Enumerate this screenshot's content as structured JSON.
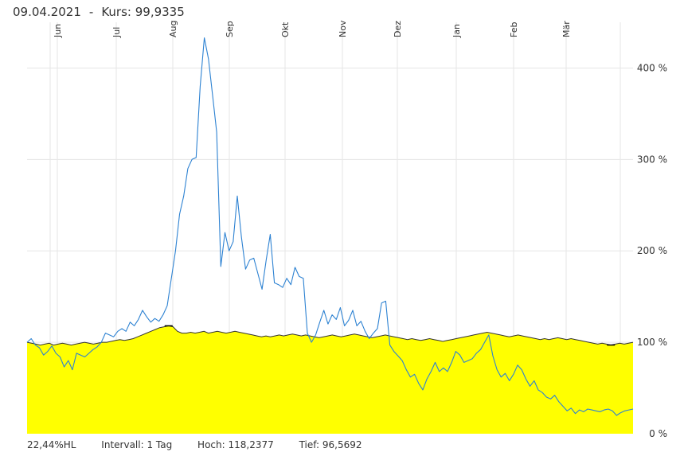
{
  "header": {
    "date": "09.04.2021",
    "kurs_label": "Kurs:",
    "kurs_value": "99,9335"
  },
  "footer": {
    "hl": "22,44%HL",
    "interval": "Intervall: 1 Tag",
    "high": "Hoch: 118,2377",
    "low": "Tief: 96,5692"
  },
  "colors": {
    "area_fill": "#ffff00",
    "area_line": "#333333",
    "series_line": "#2d82d2",
    "grid": "#e6e6e6"
  },
  "chart_data": {
    "type": "area",
    "x_ticks": [
      "Jun",
      "Jul",
      "Aug",
      "Sep",
      "Okt",
      "Nov",
      "Dez",
      "Jan",
      "Feb",
      "Mär"
    ],
    "y_ticks": [
      "0 %",
      "100 %",
      "200 %",
      "300 %",
      "400 %"
    ],
    "ylim": [
      0,
      450
    ],
    "grid": true,
    "series": [
      {
        "values": [
          100,
          99,
          98,
          97,
          98,
          99,
          97,
          98,
          99,
          98,
          97,
          98,
          99,
          100,
          99,
          98,
          99,
          100,
          100,
          101,
          102,
          103,
          102,
          103,
          104,
          106,
          108,
          110,
          112,
          114,
          116,
          117,
          118,
          117,
          112,
          110,
          110,
          111,
          110,
          111,
          112,
          110,
          111,
          112,
          111,
          110,
          111,
          112,
          111,
          110,
          109,
          108,
          107,
          106,
          107,
          106,
          107,
          108,
          107,
          108,
          109,
          108,
          107,
          108,
          107,
          106,
          105,
          106,
          107,
          108,
          107,
          106,
          107,
          108,
          109,
          108,
          107,
          106,
          105,
          106,
          107,
          108,
          107,
          106,
          105,
          104,
          103,
          104,
          103,
          102,
          103,
          104,
          103,
          102,
          101,
          102,
          103,
          104,
          105,
          106,
          107,
          108,
          109,
          110,
          111,
          110,
          109,
          108,
          107,
          106,
          107,
          108,
          107,
          106,
          105,
          104,
          103,
          104,
          103,
          104,
          105,
          104,
          103,
          104,
          103,
          102,
          101,
          100,
          99,
          98,
          99,
          98,
          97,
          98,
          99,
          98,
          99,
          100
        ]
      },
      {
        "values": [
          100,
          104,
          97,
          94,
          86,
          90,
          96,
          88,
          84,
          73,
          80,
          70,
          88,
          86,
          84,
          88,
          92,
          95,
          100,
          110,
          108,
          106,
          112,
          115,
          112,
          122,
          118,
          125,
          135,
          128,
          122,
          126,
          123,
          130,
          140,
          170,
          200,
          240,
          260,
          290,
          300,
          302,
          380,
          433,
          410,
          370,
          330,
          183,
          220,
          200,
          210,
          260,
          215,
          180,
          190,
          192,
          175,
          158,
          190,
          218,
          165,
          163,
          160,
          170,
          163,
          182,
          172,
          170,
          110,
          100,
          108,
          122,
          135,
          120,
          130,
          125,
          138,
          118,
          124,
          135,
          118,
          123,
          112,
          104,
          110,
          115,
          143,
          145,
          97,
          90,
          85,
          80,
          70,
          62,
          65,
          55,
          48,
          60,
          68,
          78,
          68,
          72,
          68,
          78,
          90,
          86,
          78,
          80,
          82,
          88,
          92,
          100,
          108,
          85,
          70,
          62,
          66,
          58,
          65,
          75,
          70,
          60,
          52,
          58,
          48,
          45,
          40,
          38,
          42,
          35,
          30,
          25,
          28,
          22,
          26,
          24,
          27,
          26,
          25,
          24,
          26,
          27,
          25,
          20,
          23,
          25,
          26,
          27
        ]
      }
    ]
  }
}
